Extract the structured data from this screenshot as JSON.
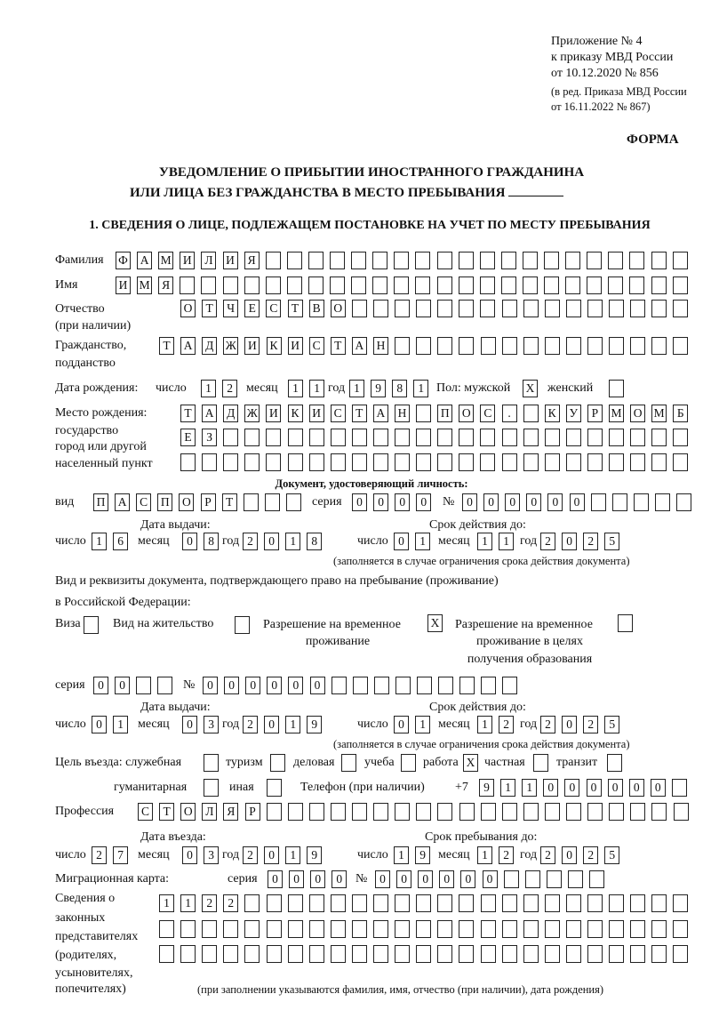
{
  "header": {
    "appendix": "Приложение № 4",
    "order": "к приказу МВД России",
    "order_date": "от 10.12.2020 № 856",
    "revision1": "(в ред. Приказа МВД России",
    "revision2": "от 16.11.2022 № 867)",
    "form_label": "ФОРМА",
    "title1": "УВЕДОМЛЕНИЕ О ПРИБЫТИИ ИНОСТРАННОГО ГРАЖДАНИНА",
    "title2": "ИЛИ ЛИЦА БЕЗ ГРАЖДАНСТВА В МЕСТО ПРЕБЫВАНИЯ"
  },
  "section1": {
    "heading": "1. СВЕДЕНИЯ О ЛИЦЕ, ПОДЛЕЖАЩЕМ ПОСТАНОВКЕ НА УЧЕТ ПО МЕСТУ ПРЕБЫВАНИЯ",
    "surname": {
      "label": "Фамилия",
      "value": "ФАМИЛИЯ"
    },
    "name": {
      "label": "Имя",
      "value": "ИМЯ"
    },
    "patronymic": {
      "label": "Отчество",
      "label2": "(при наличии)",
      "value": "ОТЧЕСТВО"
    },
    "citizenship": {
      "label": "Гражданство,",
      "label2": "подданство",
      "value": "ТАДЖИКИСТАН"
    },
    "birth": {
      "label": "Дата рождения:",
      "day_label": "число",
      "month_label": "месяц",
      "year_label": "год",
      "day": "12",
      "month": "11",
      "year": "1981",
      "sex_label": "Пол: мужской",
      "female_label": "женский",
      "male_mark": "X",
      "female_mark": ""
    },
    "birthplace": {
      "label1": "Место рождения:",
      "label2": "государство",
      "label3": "город или другой",
      "label4": "населенный пункт",
      "line1": "ТАДЖИКИСТАН ПОС. КУРМОМБ",
      "line2": "ЕЗ",
      "line3": ""
    },
    "id_doc": {
      "heading": "Документ, удостоверяющий личность:",
      "kind_label": "вид",
      "kind": "ПАСПОРТ",
      "series_label": "серия",
      "series": "0000",
      "number_label": "№",
      "number": "000000",
      "issue_label": "Дата выдачи:",
      "valid_label": "Срок действия до:",
      "day_label": "число",
      "month_label": "месяц",
      "year_label": "год",
      "issue_day": "16",
      "issue_month": "08",
      "issue_year": "2018",
      "valid_day": "01",
      "valid_month": "11",
      "valid_year": "2025",
      "note": "(заполняется в случае ограничения срока действия документа)"
    },
    "right_doc": {
      "heading1": "Вид и реквизиты документа, подтверждающего право на пребывание (проживание)",
      "heading2": "в Российской Федерации:",
      "visa_label": "Виза",
      "visa_mark": "",
      "residence_label": "Вид на жительство",
      "residence_mark": "",
      "trp_label1": "Разрешение на временное",
      "trp_label2": "проживание",
      "trp_mark": "X",
      "trp_edu_label1": "Разрешение на временное",
      "trp_edu_label2": "проживание в целях",
      "trp_edu_label3": "получения образования",
      "trp_edu_mark": "",
      "series_label": "серия",
      "series": "00",
      "number_label": "№",
      "number": "000000",
      "issue_label": "Дата выдачи:",
      "valid_label": "Срок действия до:",
      "day_label": "число",
      "month_label": "месяц",
      "year_label": "год",
      "issue_day": "01",
      "issue_month": "03",
      "issue_year": "2019",
      "valid_day": "01",
      "valid_month": "12",
      "valid_year": "2025",
      "note": "(заполняется в случае ограничения срока действия документа)"
    },
    "purpose": {
      "label": "Цель въезда: служебная",
      "items": [
        {
          "label": "туризм",
          "mark": ""
        },
        {
          "label": "деловая",
          "mark": ""
        },
        {
          "label": "учеба",
          "mark": ""
        },
        {
          "label": "работа",
          "mark": ""
        },
        {
          "label": "частная",
          "mark": ""
        },
        {
          "label": "транзит",
          "mark": ""
        },
        {
          "label": "гуманитарная",
          "mark": ""
        },
        {
          "label": "иная",
          "mark": ""
        }
      ],
      "official_mark": "",
      "work_mark": "X"
    },
    "phone": {
      "label": "Телефон (при наличии)",
      "prefix": "+7",
      "value": "911000000"
    },
    "profession": {
      "label": "Профессия",
      "value": "СТОЛЯР"
    },
    "entry": {
      "entry_label": "Дата въезда:",
      "stay_label": "Срок пребывания до:",
      "day_label": "число",
      "month_label": "месяц",
      "year_label": "год",
      "entry_day": "27",
      "entry_month": "03",
      "entry_year": "2019",
      "stay_day": "19",
      "stay_month": "12",
      "stay_year": "2025"
    },
    "migration_card": {
      "label": "Миграционная карта:",
      "series_label": "серия",
      "series": "0000",
      "number_label": "№",
      "number": "000000"
    },
    "representatives": {
      "label_lines": [
        "Сведения о",
        "законных",
        "представителях",
        "(родителях,",
        "усыновителях,",
        "попечителях)"
      ],
      "line1": "1122",
      "line2": "",
      "line3": "",
      "note": "(при заполнении указываются фамилия, имя, отчество (при наличии), дата рождения)"
    }
  }
}
